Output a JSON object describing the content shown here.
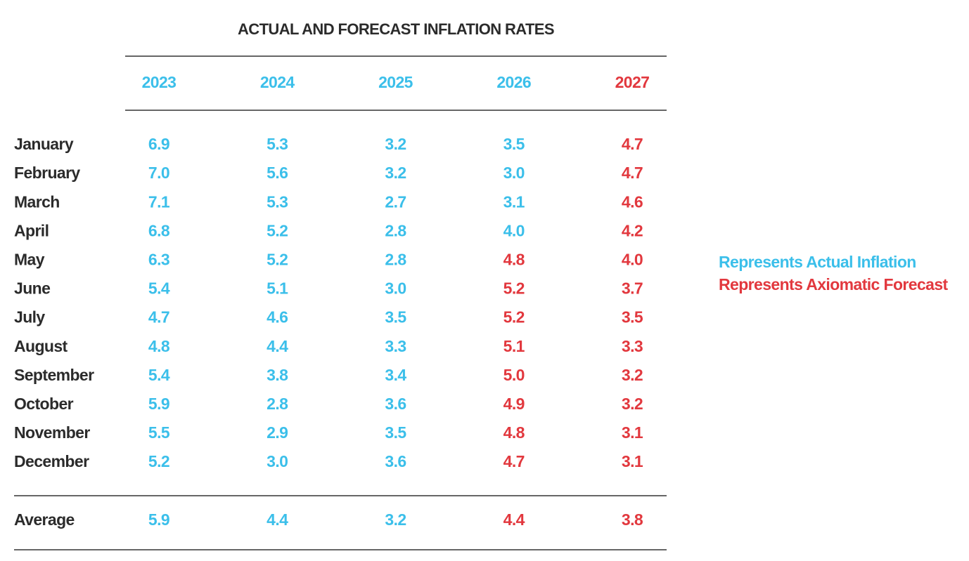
{
  "title": "ACTUAL AND FORECAST INFLATION RATES",
  "header": {
    "years": [
      "2023",
      "2024",
      "2025",
      "2026",
      "2027"
    ],
    "colors": [
      "#3bbfea",
      "#3bbfea",
      "#3bbfea",
      "#3bbfea",
      "#e2383e"
    ]
  },
  "rows": [
    {
      "label": "January",
      "values": [
        "6.9",
        "5.3",
        "3.2",
        "3.5",
        "4.7"
      ],
      "colors": [
        "#3bbfea",
        "#3bbfea",
        "#3bbfea",
        "#3bbfea",
        "#e2383e"
      ]
    },
    {
      "label": "February",
      "values": [
        "7.0",
        "5.6",
        "3.2",
        "3.0",
        "4.7"
      ],
      "colors": [
        "#3bbfea",
        "#3bbfea",
        "#3bbfea",
        "#3bbfea",
        "#e2383e"
      ]
    },
    {
      "label": "March",
      "values": [
        "7.1",
        "5.3",
        "2.7",
        "3.1",
        "4.6"
      ],
      "colors": [
        "#3bbfea",
        "#3bbfea",
        "#3bbfea",
        "#3bbfea",
        "#e2383e"
      ]
    },
    {
      "label": "April",
      "values": [
        "6.8",
        "5.2",
        "2.8",
        "4.0",
        "4.2"
      ],
      "colors": [
        "#3bbfea",
        "#3bbfea",
        "#3bbfea",
        "#3bbfea",
        "#e2383e"
      ]
    },
    {
      "label": "May",
      "values": [
        "6.3",
        "5.2",
        "2.8",
        "4.8",
        "4.0"
      ],
      "colors": [
        "#3bbfea",
        "#3bbfea",
        "#3bbfea",
        "#e2383e",
        "#e2383e"
      ]
    },
    {
      "label": "June",
      "values": [
        "5.4",
        "5.1",
        "3.0",
        "5.2",
        "3.7"
      ],
      "colors": [
        "#3bbfea",
        "#3bbfea",
        "#3bbfea",
        "#e2383e",
        "#e2383e"
      ]
    },
    {
      "label": "July",
      "values": [
        "4.7",
        "4.6",
        "3.5",
        "5.2",
        "3.5"
      ],
      "colors": [
        "#3bbfea",
        "#3bbfea",
        "#3bbfea",
        "#e2383e",
        "#e2383e"
      ]
    },
    {
      "label": "August",
      "values": [
        "4.8",
        "4.4",
        "3.3",
        "5.1",
        "3.3"
      ],
      "colors": [
        "#3bbfea",
        "#3bbfea",
        "#3bbfea",
        "#e2383e",
        "#e2383e"
      ]
    },
    {
      "label": "September",
      "values": [
        "5.4",
        "3.8",
        "3.4",
        "5.0",
        "3.2"
      ],
      "colors": [
        "#3bbfea",
        "#3bbfea",
        "#3bbfea",
        "#e2383e",
        "#e2383e"
      ]
    },
    {
      "label": "October",
      "values": [
        "5.9",
        "2.8",
        "3.6",
        "4.9",
        "3.2"
      ],
      "colors": [
        "#3bbfea",
        "#3bbfea",
        "#3bbfea",
        "#e2383e",
        "#e2383e"
      ]
    },
    {
      "label": "November",
      "values": [
        "5.5",
        "2.9",
        "3.5",
        "4.8",
        "3.1"
      ],
      "colors": [
        "#3bbfea",
        "#3bbfea",
        "#3bbfea",
        "#e2383e",
        "#e2383e"
      ]
    },
    {
      "label": "December",
      "values": [
        "5.2",
        "3.0",
        "3.6",
        "4.7",
        "3.1"
      ],
      "colors": [
        "#3bbfea",
        "#3bbfea",
        "#3bbfea",
        "#e2383e",
        "#e2383e"
      ]
    }
  ],
  "average": {
    "label": "Average",
    "values": [
      "5.9",
      "4.4",
      "3.2",
      "4.4",
      "3.8"
    ],
    "colors": [
      "#3bbfea",
      "#3bbfea",
      "#3bbfea",
      "#e2383e",
      "#e2383e"
    ]
  },
  "legend": [
    {
      "text": "Represents Actual Inflation",
      "color": "#3bbfea"
    },
    {
      "text": "Represents Axiomatic Forecast",
      "color": "#e2383e"
    }
  ]
}
